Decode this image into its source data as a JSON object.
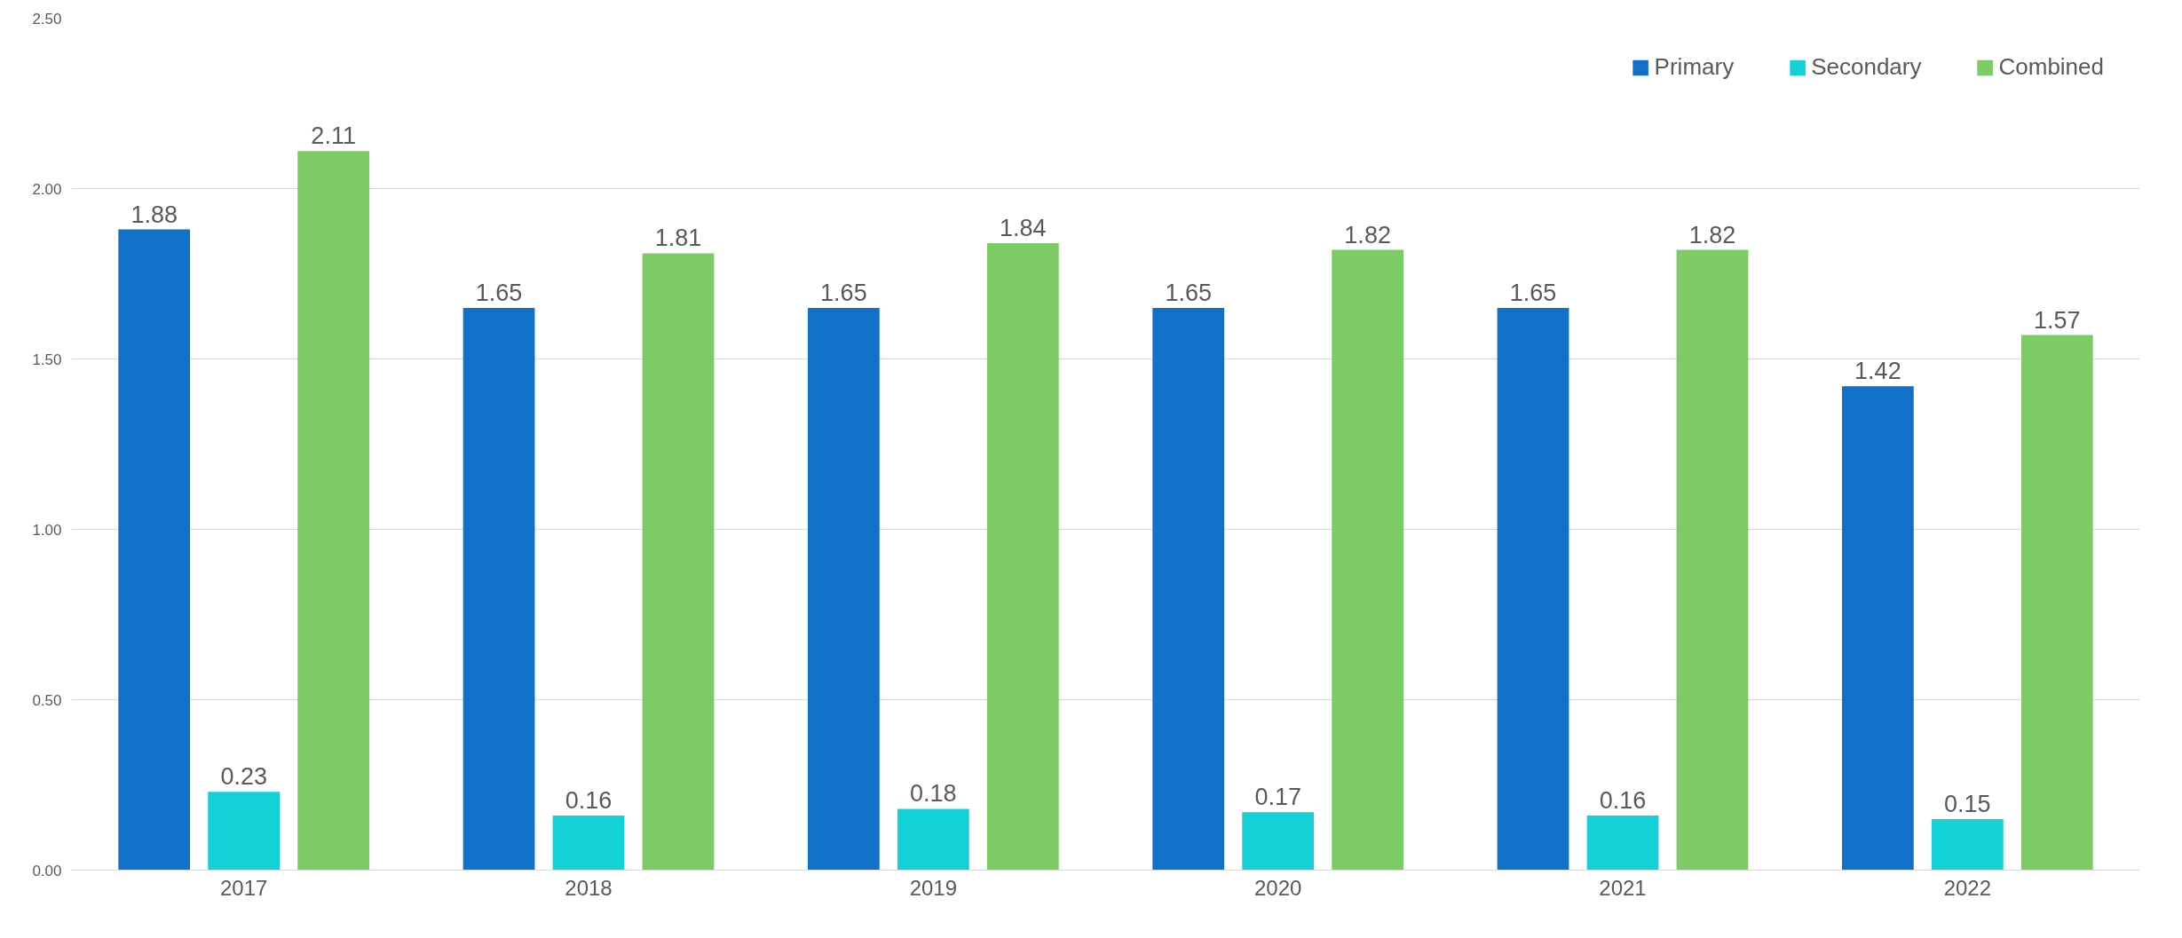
{
  "chart_data": {
    "type": "bar",
    "categories": [
      "2017",
      "2018",
      "2019",
      "2020",
      "2021",
      "2022"
    ],
    "series": [
      {
        "name": "Primary",
        "color": "#1170c8",
        "values": [
          1.88,
          1.65,
          1.65,
          1.65,
          1.65,
          1.42
        ]
      },
      {
        "name": "Secondary",
        "color": "#12d2d8",
        "values": [
          0.23,
          0.16,
          0.18,
          0.17,
          0.16,
          0.15
        ]
      },
      {
        "name": "Combined",
        "color": "#7dcb64",
        "values": [
          2.11,
          1.81,
          1.84,
          1.82,
          1.82,
          1.57
        ]
      }
    ],
    "ylim": [
      0,
      2.5
    ],
    "yticks": [
      {
        "value": 0,
        "label": "0.00"
      },
      {
        "value": 0.5,
        "label": "0.50"
      },
      {
        "value": 1,
        "label": "1.00"
      },
      {
        "value": 1.5,
        "label": "1.50"
      },
      {
        "value": 2,
        "label": "2.00"
      },
      {
        "value": 2.5,
        "label": "2.50"
      }
    ],
    "grid": "y",
    "legend": "top right",
    "data_labels": true
  }
}
